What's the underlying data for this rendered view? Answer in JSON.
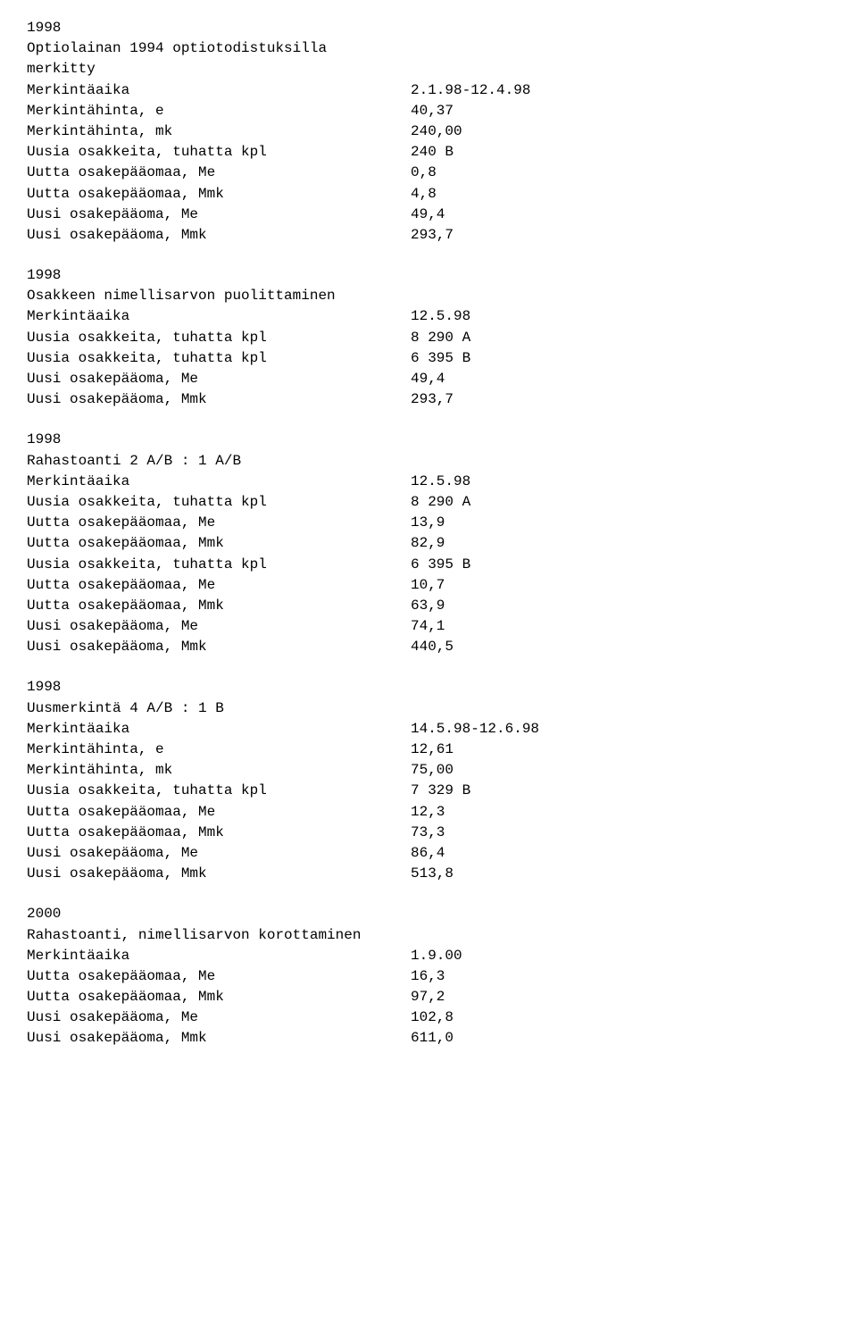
{
  "sections": [
    {
      "year": "1998",
      "title_lines": [
        "Optiolainan 1994 optiotodistuksilla",
        "merkitty"
      ],
      "rows": [
        {
          "label": "Merkintäaika",
          "value": "2.1.98-12.4.98"
        },
        {
          "label": "Merkintähinta, e",
          "value": "40,37"
        },
        {
          "label": "Merkintähinta, mk",
          "value": "240,00"
        },
        {
          "label": "Uusia osakkeita, tuhatta kpl",
          "value": "240 B"
        },
        {
          "label": "Uutta osakepääomaa, Me",
          "value": "0,8"
        },
        {
          "label": "Uutta osakepääomaa, Mmk",
          "value": "4,8"
        },
        {
          "label": "Uusi osakepääoma, Me",
          "value": "49,4"
        },
        {
          "label": "Uusi osakepääoma, Mmk",
          "value": "293,7"
        }
      ]
    },
    {
      "year": "1998",
      "title_lines": [
        "Osakkeen nimellisarvon puolittaminen"
      ],
      "rows": [
        {
          "label": "Merkintäaika",
          "value": "12.5.98"
        },
        {
          "label": "Uusia osakkeita, tuhatta kpl",
          "value": "8 290 A"
        },
        {
          "label": "Uusia osakkeita, tuhatta kpl",
          "value": "6 395 B"
        },
        {
          "label": "Uusi osakepääoma, Me",
          "value": "49,4"
        },
        {
          "label": "Uusi osakepääoma, Mmk",
          "value": "293,7"
        }
      ]
    },
    {
      "year": "1998",
      "title_lines": [
        "Rahastoanti 2 A/B : 1 A/B"
      ],
      "rows": [
        {
          "label": "Merkintäaika",
          "value": "12.5.98"
        },
        {
          "label": "Uusia osakkeita, tuhatta kpl",
          "value": "8 290 A"
        },
        {
          "label": "Uutta osakepääomaa, Me",
          "value": "13,9"
        },
        {
          "label": "Uutta osakepääomaa, Mmk",
          "value": "82,9"
        },
        {
          "label": "Uusia osakkeita, tuhatta kpl",
          "value": "6 395 B"
        },
        {
          "label": "Uutta osakepääomaa, Me",
          "value": "10,7"
        },
        {
          "label": "Uutta osakepääomaa, Mmk",
          "value": "63,9"
        },
        {
          "label": "Uusi osakepääoma, Me",
          "value": "74,1"
        },
        {
          "label": "Uusi osakepääoma, Mmk",
          "value": "440,5"
        }
      ]
    },
    {
      "year": "1998",
      "title_lines": [
        "Uusmerkintä 4 A/B : 1 B"
      ],
      "rows": [
        {
          "label": "Merkintäaika",
          "value": "14.5.98-12.6.98"
        },
        {
          "label": "Merkintähinta, e",
          "value": "12,61"
        },
        {
          "label": "Merkintähinta, mk",
          "value": "75,00"
        },
        {
          "label": "Uusia osakkeita, tuhatta kpl",
          "value": "7 329 B"
        },
        {
          "label": "Uutta osakepääomaa, Me",
          "value": "12,3"
        },
        {
          "label": "Uutta osakepääomaa, Mmk",
          "value": "73,3"
        },
        {
          "label": "Uusi osakepääoma, Me",
          "value": "86,4"
        },
        {
          "label": "Uusi osakepääoma, Mmk",
          "value": "513,8"
        }
      ]
    },
    {
      "year": "2000",
      "title_lines": [
        "Rahastoanti, nimellisarvon korottaminen"
      ],
      "rows": [
        {
          "label": "Merkintäaika",
          "value": "1.9.00"
        },
        {
          "label": "Uutta osakepääomaa, Me",
          "value": "16,3"
        },
        {
          "label": "Uutta osakepääomaa, Mmk",
          "value": "97,2"
        },
        {
          "label": "Uusi osakepääoma, Me",
          "value": "102,8"
        },
        {
          "label": "Uusi osakepääoma, Mmk",
          "value": "611,0"
        }
      ]
    }
  ]
}
